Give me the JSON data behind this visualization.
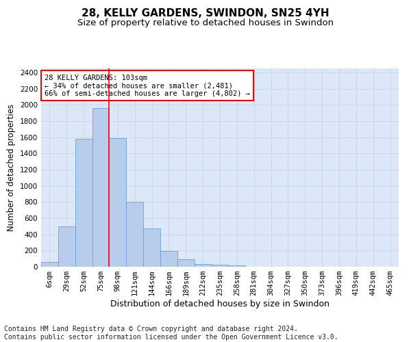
{
  "title_line1": "28, KELLY GARDENS, SWINDON, SN25 4YH",
  "title_line2": "Size of property relative to detached houses in Swindon",
  "xlabel": "Distribution of detached houses by size in Swindon",
  "ylabel": "Number of detached properties",
  "bar_labels": [
    "6sqm",
    "29sqm",
    "52sqm",
    "75sqm",
    "98sqm",
    "121sqm",
    "144sqm",
    "166sqm",
    "189sqm",
    "212sqm",
    "235sqm",
    "258sqm",
    "281sqm",
    "304sqm",
    "327sqm",
    "350sqm",
    "373sqm",
    "396sqm",
    "419sqm",
    "442sqm",
    "465sqm"
  ],
  "bar_heights": [
    60,
    500,
    1580,
    1960,
    1590,
    800,
    470,
    195,
    90,
    35,
    25,
    20,
    0,
    0,
    0,
    0,
    0,
    0,
    0,
    0,
    0
  ],
  "bar_color": "#b8cceb",
  "bar_edge_color": "#6a9fd8",
  "red_line_index": 4,
  "annotation_text": "28 KELLY GARDENS: 103sqm\n← 34% of detached houses are smaller (2,481)\n66% of semi-detached houses are larger (4,802) →",
  "annotation_box_color": "white",
  "annotation_box_edge_color": "red",
  "ylim": [
    0,
    2450
  ],
  "yticks": [
    0,
    200,
    400,
    600,
    800,
    1000,
    1200,
    1400,
    1600,
    1800,
    2000,
    2200,
    2400
  ],
  "grid_color": "#c8d8ec",
  "background_color": "#dce8f8",
  "footer_line1": "Contains HM Land Registry data © Crown copyright and database right 2024.",
  "footer_line2": "Contains public sector information licensed under the Open Government Licence v3.0.",
  "title_fontsize": 11,
  "subtitle_fontsize": 9.5,
  "xlabel_fontsize": 9,
  "ylabel_fontsize": 8.5,
  "tick_fontsize": 7.5,
  "footer_fontsize": 7,
  "annotation_fontsize": 7.5
}
